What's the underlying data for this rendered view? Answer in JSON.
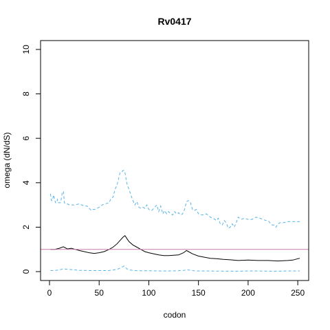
{
  "chart_data": {
    "type": "line",
    "title": "Rv0417",
    "xlabel": "codon",
    "ylabel": "omega (dN/dS)",
    "xlim": [
      -9,
      261
    ],
    "ylim": [
      -0.4,
      10.4
    ],
    "xticks": [
      0,
      50,
      100,
      150,
      200,
      250
    ],
    "yticks": [
      0,
      2,
      4,
      6,
      8,
      10
    ],
    "grid": false,
    "reference_line": {
      "y": 1,
      "color": "#cc79a7"
    },
    "series": [
      {
        "style": "dashed",
        "color": "#56b4e9",
        "x": [
          1,
          2,
          3,
          4,
          5,
          6,
          7,
          8,
          9,
          10,
          11,
          12,
          13,
          14,
          15,
          16,
          18,
          20,
          25,
          30,
          35,
          38,
          40,
          42,
          44,
          46,
          48,
          50,
          53,
          56,
          60,
          62,
          64,
          66,
          68,
          70,
          71,
          72,
          73,
          74,
          75,
          76,
          77,
          78,
          80,
          82,
          84,
          86,
          88,
          90,
          92,
          94,
          96,
          98,
          100,
          103,
          106,
          108,
          110,
          112,
          114,
          116,
          118,
          120,
          122,
          124,
          126,
          128,
          130,
          132,
          134,
          136,
          138,
          140,
          142,
          144,
          146,
          148,
          150,
          154,
          158,
          162,
          165,
          168,
          170,
          172,
          174,
          176,
          178,
          180,
          182,
          184,
          186,
          188,
          190,
          193,
          196,
          200,
          204,
          208,
          212,
          215,
          218,
          220,
          222,
          224,
          226,
          228,
          230,
          232,
          235,
          240,
          245,
          250,
          252
        ],
        "y": [
          3.5,
          3.2,
          3.2,
          3.45,
          3.3,
          3.1,
          3.1,
          3.25,
          3.1,
          3.1,
          3.1,
          3.3,
          3.6,
          3.6,
          3.1,
          3.05,
          3.05,
          3.0,
          3.0,
          3.05,
          2.95,
          2.95,
          2.85,
          2.75,
          2.8,
          2.8,
          2.85,
          2.9,
          3.0,
          3.05,
          3.1,
          3.3,
          3.35,
          3.7,
          3.9,
          4.25,
          4.45,
          4.5,
          4.5,
          4.55,
          4.55,
          4.45,
          4.2,
          3.95,
          3.7,
          3.45,
          3.2,
          3.0,
          3.15,
          2.9,
          2.85,
          2.9,
          2.85,
          3.0,
          2.8,
          2.75,
          2.9,
          3.0,
          2.7,
          2.95,
          2.6,
          2.75,
          2.6,
          2.7,
          2.6,
          2.55,
          2.7,
          2.6,
          2.65,
          2.55,
          2.6,
          2.8,
          3.15,
          3.2,
          3.1,
          2.8,
          2.75,
          2.8,
          2.6,
          2.55,
          2.6,
          2.45,
          2.4,
          2.3,
          2.4,
          2.15,
          2.1,
          2.3,
          2.2,
          1.95,
          2.0,
          2.15,
          2.0,
          2.2,
          2.45,
          2.35,
          2.4,
          2.35,
          2.35,
          2.45,
          2.4,
          2.35,
          2.3,
          2.3,
          2.2,
          2.1,
          2.1,
          2.0,
          2.15,
          2.2,
          2.2,
          2.25,
          2.25,
          2.25,
          2.25
        ]
      },
      {
        "style": "solid",
        "color": "#000000",
        "x": [
          1,
          5,
          10,
          14,
          18,
          22,
          26,
          30,
          35,
          40,
          45,
          50,
          55,
          60,
          64,
          68,
          72,
          74,
          76,
          78,
          80,
          84,
          88,
          92,
          96,
          100,
          105,
          110,
          115,
          120,
          125,
          130,
          135,
          138,
          140,
          144,
          150,
          156,
          162,
          168,
          175,
          182,
          190,
          200,
          210,
          220,
          230,
          240,
          245,
          250,
          252
        ],
        "y": [
          1.0,
          1.0,
          1.05,
          1.12,
          1.02,
          1.05,
          1.0,
          0.95,
          0.9,
          0.85,
          0.82,
          0.85,
          0.9,
          1.0,
          1.1,
          1.25,
          1.45,
          1.55,
          1.62,
          1.48,
          1.35,
          1.2,
          1.1,
          1.0,
          0.9,
          0.85,
          0.8,
          0.75,
          0.72,
          0.72,
          0.74,
          0.75,
          0.85,
          0.95,
          0.9,
          0.8,
          0.7,
          0.65,
          0.6,
          0.58,
          0.55,
          0.53,
          0.5,
          0.52,
          0.5,
          0.5,
          0.48,
          0.5,
          0.52,
          0.58,
          0.6
        ]
      },
      {
        "style": "dashed",
        "color": "#56b4e9",
        "x": [
          1,
          5,
          10,
          14,
          18,
          25,
          30,
          40,
          50,
          60,
          68,
          72,
          75,
          76,
          78,
          80,
          85,
          90,
          100,
          110,
          120,
          130,
          136,
          138,
          140,
          145,
          150,
          160,
          170,
          180,
          190,
          200,
          210,
          220,
          230,
          240,
          250,
          252
        ],
        "y": [
          0.05,
          0.05,
          0.08,
          0.12,
          0.1,
          0.08,
          0.06,
          0.05,
          0.05,
          0.05,
          0.1,
          0.18,
          0.25,
          0.22,
          0.12,
          0.08,
          0.05,
          0.04,
          0.04,
          0.03,
          0.03,
          0.04,
          0.06,
          0.09,
          0.07,
          0.04,
          0.03,
          0.03,
          0.02,
          0.02,
          0.02,
          0.03,
          0.03,
          0.02,
          0.02,
          0.03,
          0.03,
          0.03
        ]
      }
    ]
  }
}
